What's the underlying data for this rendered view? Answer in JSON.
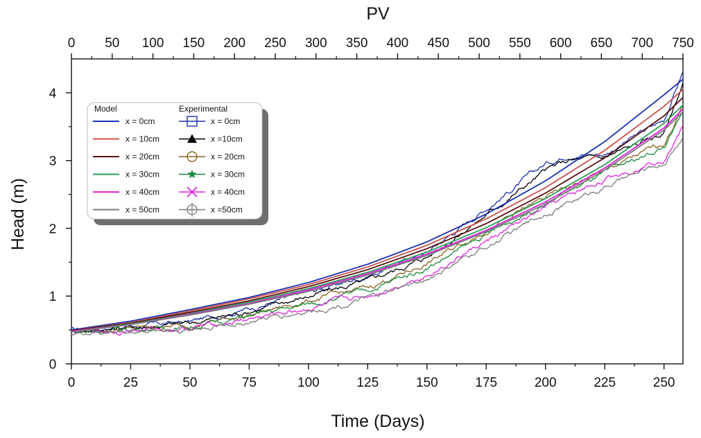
{
  "chart_data": {
    "type": "line",
    "title": "",
    "top_axis": {
      "label": "PV",
      "range": [
        0,
        750
      ],
      "ticks": [
        "0",
        "50",
        "100",
        "150",
        "200",
        "250",
        "300",
        "350",
        "400",
        "450",
        "500",
        "550",
        "600",
        "650",
        "700",
        "750"
      ]
    },
    "xlabel": "Time (Days)",
    "ylabel": "Head (m)",
    "xlim": [
      0,
      258
    ],
    "ylim": [
      0,
      4.5
    ],
    "x_ticks": [
      "0",
      "25",
      "50",
      "75",
      "100",
      "125",
      "150",
      "175",
      "200",
      "225",
      "250"
    ],
    "y_ticks": [
      "0",
      "1",
      "2",
      "3",
      "4"
    ],
    "grid": false,
    "legend": {
      "placement": "upper-left",
      "model_header": "Model",
      "experimental_header": "Experimental"
    },
    "model_series": [
      {
        "name": "x = 0cm",
        "color": "#1a2fb0",
        "x": [
          0,
          25,
          50,
          75,
          100,
          125,
          150,
          175,
          200,
          225,
          250,
          258
        ],
        "y": [
          0.5,
          0.63,
          0.8,
          0.98,
          1.2,
          1.47,
          1.8,
          2.21,
          2.7,
          3.28,
          3.97,
          4.2
        ]
      },
      {
        "name": "x = 10cm",
        "color": "#c8504a",
        "x": [
          0,
          25,
          50,
          75,
          100,
          125,
          150,
          175,
          200,
          225,
          250,
          258
        ],
        "y": [
          0.49,
          0.61,
          0.78,
          0.96,
          1.17,
          1.43,
          1.75,
          2.14,
          2.6,
          3.15,
          3.8,
          4.05
        ]
      },
      {
        "name": "x = 20cm",
        "color": "#5a1010",
        "x": [
          0,
          25,
          50,
          75,
          100,
          125,
          150,
          175,
          200,
          225,
          250,
          258
        ],
        "y": [
          0.49,
          0.6,
          0.76,
          0.93,
          1.14,
          1.39,
          1.7,
          2.07,
          2.52,
          3.04,
          3.66,
          3.93
        ]
      },
      {
        "name": "x = 30cm",
        "color": "#2a9a5a",
        "x": [
          0,
          25,
          50,
          75,
          100,
          125,
          150,
          175,
          200,
          225,
          250,
          258
        ],
        "y": [
          0.48,
          0.59,
          0.74,
          0.91,
          1.11,
          1.35,
          1.65,
          2.01,
          2.44,
          2.94,
          3.55,
          3.82
        ]
      },
      {
        "name": "x = 40cm",
        "color": "#e020e0",
        "x": [
          0,
          25,
          50,
          75,
          100,
          125,
          150,
          175,
          200,
          225,
          250,
          258
        ],
        "y": [
          0.48,
          0.58,
          0.73,
          0.89,
          1.09,
          1.33,
          1.62,
          1.97,
          2.39,
          2.89,
          3.48,
          3.76
        ]
      },
      {
        "name": "x = 50cm",
        "color": "#7a7a7a",
        "x": [
          0,
          25,
          50,
          75,
          100,
          125,
          150,
          175,
          200,
          225,
          250,
          258
        ],
        "y": [
          0.47,
          0.58,
          0.72,
          0.88,
          1.07,
          1.31,
          1.6,
          1.95,
          2.36,
          2.86,
          3.45,
          3.72
        ]
      }
    ],
    "experimental_series": [
      {
        "name": "x = 0cm",
        "color": "#1a2fb0",
        "marker": "square",
        "x": [
          0,
          25,
          50,
          75,
          100,
          125,
          150,
          175,
          200,
          210,
          225,
          250,
          258
        ],
        "y": [
          0.5,
          0.55,
          0.62,
          0.82,
          1.05,
          1.3,
          1.65,
          2.3,
          2.95,
          3.1,
          3.1,
          3.6,
          4.32
        ]
      },
      {
        "name": "x =10cm",
        "color": "#000000",
        "marker": "triangle",
        "x": [
          0,
          25,
          50,
          75,
          100,
          125,
          150,
          175,
          200,
          210,
          225,
          250,
          258
        ],
        "y": [
          0.49,
          0.54,
          0.6,
          0.78,
          1.0,
          1.22,
          1.58,
          2.2,
          2.85,
          3.0,
          3.05,
          3.4,
          4.15
        ]
      },
      {
        "name": "x = 20cm",
        "color": "#8a6020",
        "marker": "circle",
        "x": [
          0,
          25,
          50,
          75,
          100,
          125,
          150,
          175,
          200,
          225,
          250,
          258
        ],
        "y": [
          0.48,
          0.52,
          0.57,
          0.72,
          0.93,
          1.12,
          1.48,
          1.98,
          2.45,
          2.85,
          3.25,
          3.8
        ]
      },
      {
        "name": "x = 30cm",
        "color": "#1a8a3a",
        "marker": "star",
        "x": [
          0,
          25,
          50,
          75,
          100,
          125,
          150,
          175,
          200,
          225,
          250,
          258
        ],
        "y": [
          0.47,
          0.51,
          0.55,
          0.7,
          0.88,
          1.08,
          1.42,
          1.9,
          2.38,
          2.8,
          3.2,
          3.68
        ]
      },
      {
        "name": "x = 40cm",
        "color": "#e020e0",
        "marker": "x",
        "x": [
          0,
          25,
          50,
          75,
          100,
          125,
          150,
          175,
          200,
          225,
          250,
          258
        ],
        "y": [
          0.46,
          0.5,
          0.53,
          0.66,
          0.82,
          1.0,
          1.32,
          1.8,
          2.3,
          2.72,
          3.05,
          3.5
        ]
      },
      {
        "name": "x =50cm",
        "color": "#7a7a7a",
        "marker": "circle-cross",
        "x": [
          0,
          25,
          50,
          75,
          100,
          125,
          150,
          175,
          200,
          225,
          250,
          258
        ],
        "y": [
          0.45,
          0.48,
          0.51,
          0.62,
          0.78,
          0.95,
          1.25,
          1.72,
          2.22,
          2.62,
          2.95,
          3.35
        ]
      }
    ]
  }
}
